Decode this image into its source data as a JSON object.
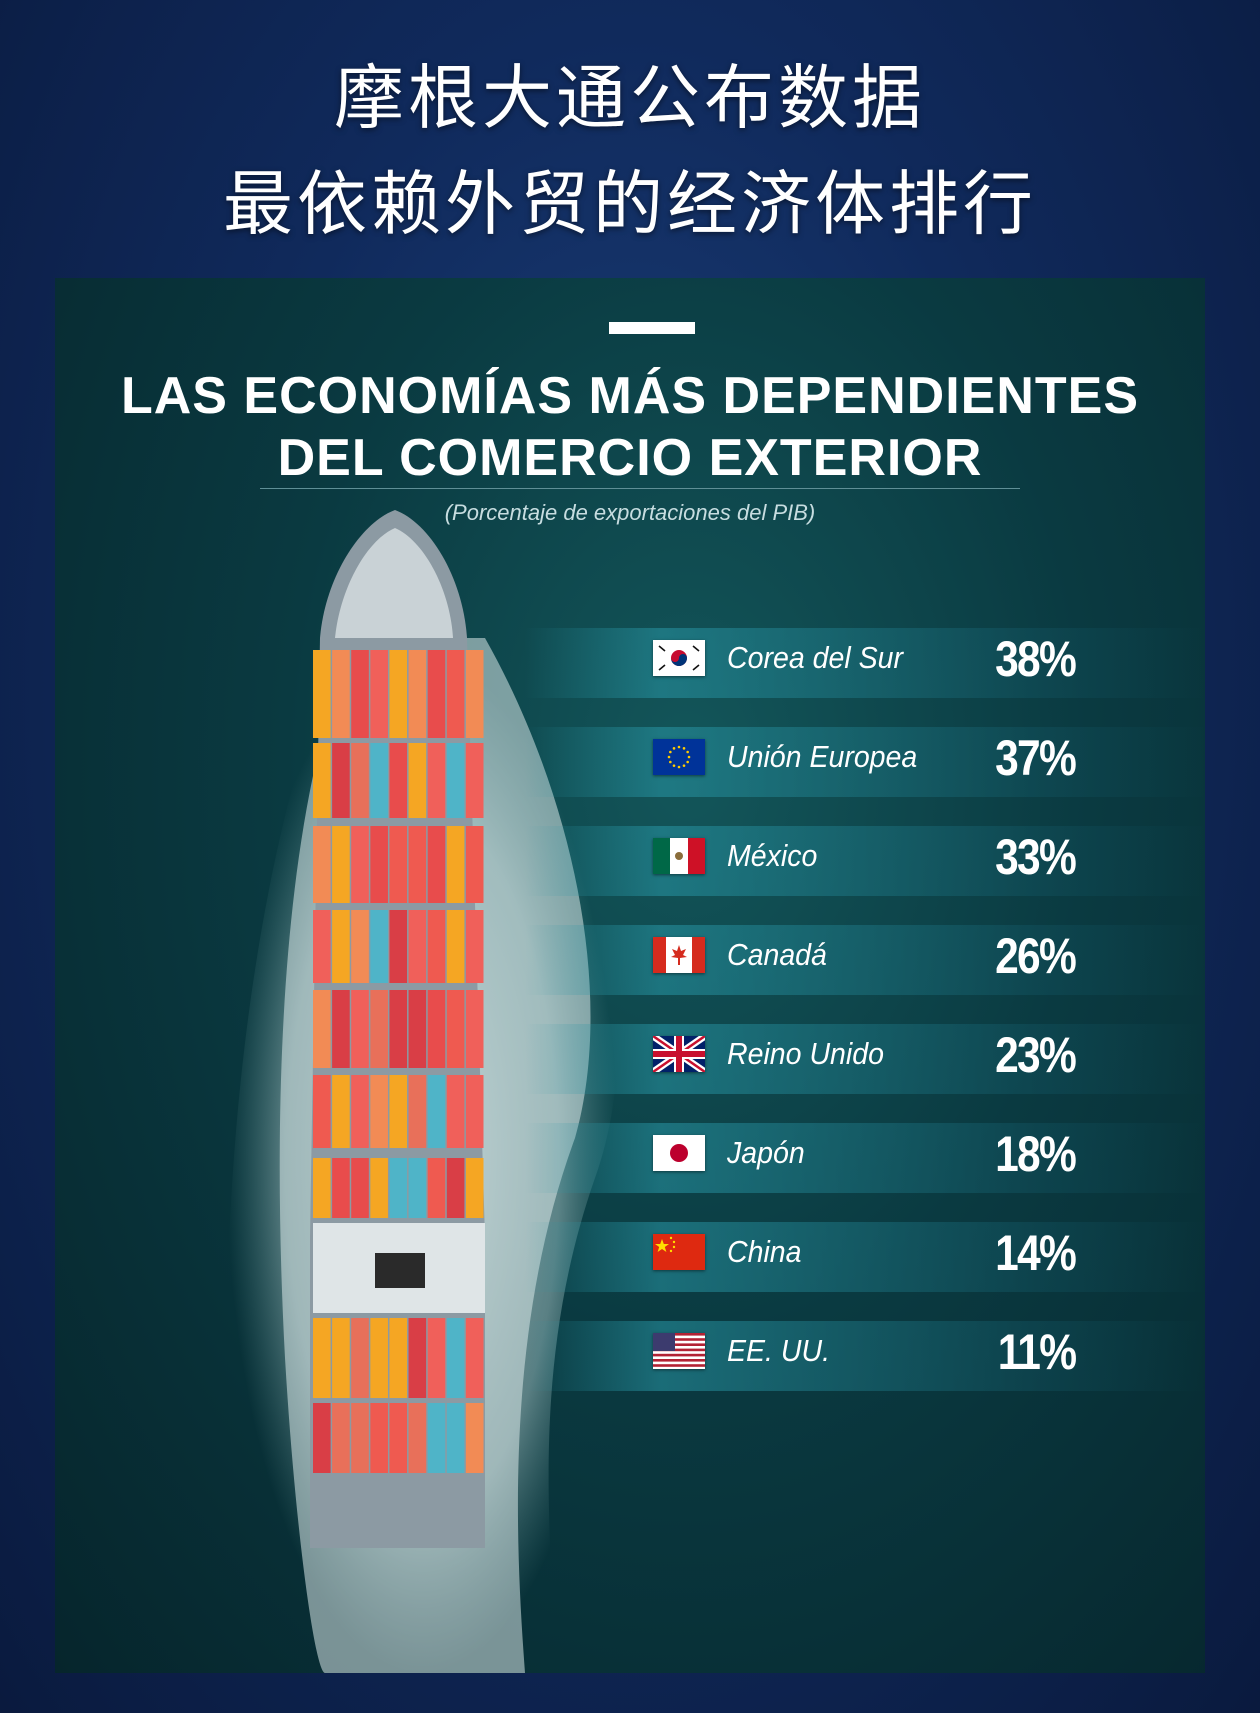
{
  "header": {
    "line1": "摩根大通公布数据",
    "line2": "最依赖外贸的经济体排行"
  },
  "chart_data": {
    "type": "bar",
    "title_line1": "LAS ECONOMÍAS MÁS DEPENDIENTES",
    "title_line2": "DEL COMERCIO EXTERIOR",
    "subtitle": "(Porcentaje de exportaciones del PIB)",
    "categories": [
      "Corea del Sur",
      "Unión Europea",
      "México",
      "Canadá",
      "Reino Unido",
      "Japón",
      "China",
      "EE. UU."
    ],
    "values": [
      38,
      37,
      33,
      26,
      23,
      18,
      14,
      11
    ],
    "value_labels": [
      "38%",
      "37%",
      "33%",
      "26%",
      "23%",
      "18%",
      "14%",
      "11%"
    ],
    "flag_icons": [
      "south-korea-flag-icon",
      "eu-flag-icon",
      "mexico-flag-icon",
      "canada-flag-icon",
      "uk-flag-icon",
      "japan-flag-icon",
      "china-flag-icon",
      "usa-flag-icon"
    ],
    "unit": "%"
  },
  "colors": {
    "page_background": "#102a5c",
    "panel_background": "#0a3a41",
    "band_accent": "#2896a5",
    "text": "#ffffff"
  }
}
